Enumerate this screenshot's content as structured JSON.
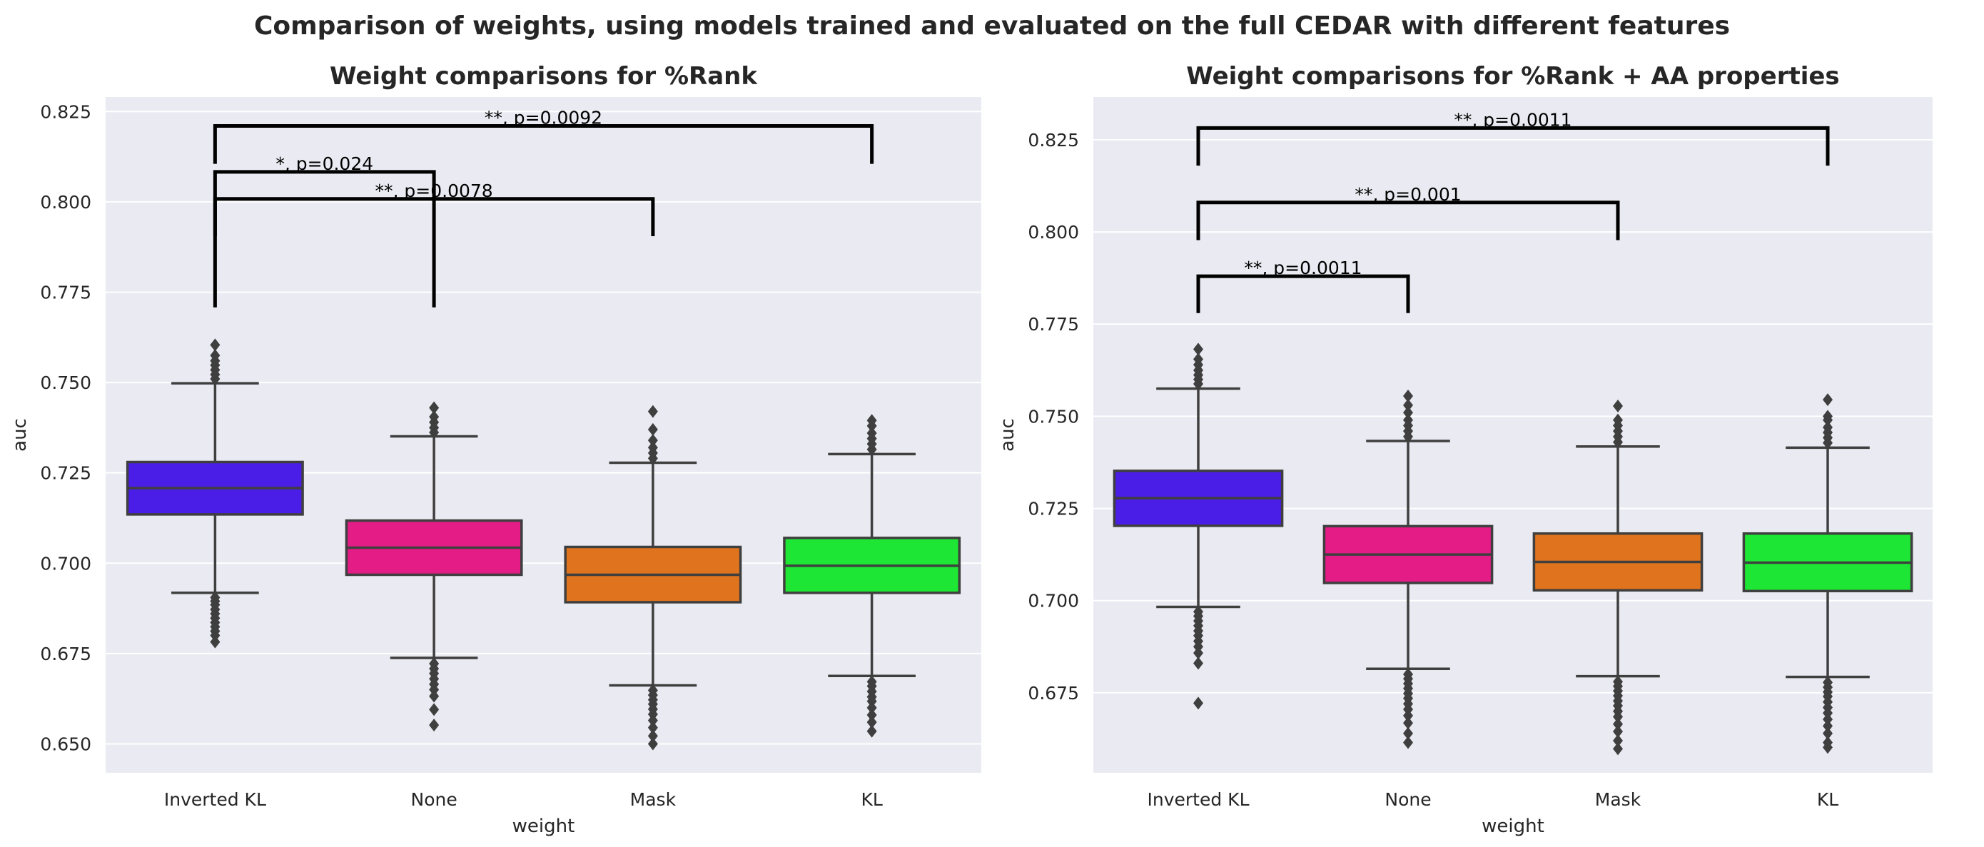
{
  "figure": {
    "title": "Comparison of weights, using models trained and evaluated on the full CEDAR with different features"
  },
  "chart_data": [
    {
      "type": "box",
      "title": "Weight comparisons for %Rank",
      "xlabel": "weight",
      "ylabel": "auc",
      "categories": [
        "Inverted KL",
        "None",
        "Mask",
        "KL"
      ],
      "colors": [
        "#4a1ee6",
        "#e31c86",
        "#e0731d",
        "#1ee634"
      ],
      "ylim": [
        0.642,
        0.829
      ],
      "yticks": [
        {
          "value": 0.65,
          "label": "0.650"
        },
        {
          "value": 0.675,
          "label": "0.675"
        },
        {
          "value": 0.7,
          "label": "0.700"
        },
        {
          "value": 0.725,
          "label": "0.725"
        },
        {
          "value": 0.75,
          "label": "0.750"
        },
        {
          "value": 0.775,
          "label": "0.775"
        },
        {
          "value": 0.8,
          "label": "0.800"
        },
        {
          "value": 0.825,
          "label": "0.825"
        }
      ],
      "boxes": [
        {
          "category": "Inverted KL",
          "q1": 0.7135,
          "median": 0.7208,
          "q3": 0.728,
          "whisker_low": 0.6918,
          "whisker_high": 0.7498,
          "fliers_low": [
            0.6905,
            0.6895,
            0.6885,
            0.6872,
            0.686,
            0.6848,
            0.6836,
            0.6824,
            0.6812,
            0.68,
            0.6782
          ],
          "fliers_high": [
            0.751,
            0.7522,
            0.7535,
            0.7548,
            0.756,
            0.7575,
            0.7604
          ]
        },
        {
          "category": "None",
          "q1": 0.6968,
          "median": 0.7043,
          "q3": 0.7118,
          "whisker_low": 0.6738,
          "whisker_high": 0.7351,
          "fliers_low": [
            0.6722,
            0.6708,
            0.6695,
            0.668,
            0.6665,
            0.665,
            0.6632,
            0.6595,
            0.6552
          ],
          "fliers_high": [
            0.7362,
            0.7375,
            0.739,
            0.7405,
            0.743
          ]
        },
        {
          "category": "Mask",
          "q1": 0.6892,
          "median": 0.6968,
          "q3": 0.7045,
          "whisker_low": 0.6662,
          "whisker_high": 0.7278,
          "fliers_low": [
            0.6648,
            0.6635,
            0.6622,
            0.661,
            0.6596,
            0.6582,
            0.6565,
            0.6545,
            0.6522,
            0.65
          ],
          "fliers_high": [
            0.729,
            0.7305,
            0.732,
            0.734,
            0.737,
            0.742
          ]
        },
        {
          "category": "KL",
          "q1": 0.6918,
          "median": 0.6993,
          "q3": 0.707,
          "whisker_low": 0.6688,
          "whisker_high": 0.7302,
          "fliers_low": [
            0.6672,
            0.666,
            0.6645,
            0.663,
            0.6618,
            0.66,
            0.658,
            0.656,
            0.6535
          ],
          "fliers_high": [
            0.7315,
            0.733,
            0.7345,
            0.736,
            0.738,
            0.7395
          ]
        }
      ],
      "annotations": [
        {
          "from": "Inverted KL",
          "to": "None",
          "y": 0.8083,
          "bottom_left": 0.7708,
          "bottom_right": 0.7708,
          "text": "*, p=0.024"
        },
        {
          "from": "Inverted KL",
          "to": "Mask",
          "y": 0.8008,
          "bottom_left": 0.7905,
          "bottom_right": 0.7905,
          "text": "**, p=0.0078"
        },
        {
          "from": "Inverted KL",
          "to": "KL",
          "y": 0.821,
          "bottom_left": 0.8105,
          "bottom_right": 0.8105,
          "text": "**, p=0.0092"
        }
      ]
    },
    {
      "type": "box",
      "title": "Weight comparisons for %Rank + AA properties",
      "xlabel": "weight",
      "ylabel": "auc",
      "categories": [
        "Inverted KL",
        "None",
        "Mask",
        "KL"
      ],
      "colors": [
        "#4a1ee6",
        "#e31c86",
        "#e0731d",
        "#1ee634"
      ],
      "ylim": [
        0.6533,
        0.8366
      ],
      "yticks": [
        {
          "value": 0.675,
          "label": "0.675"
        },
        {
          "value": 0.7,
          "label": "0.700"
        },
        {
          "value": 0.725,
          "label": "0.725"
        },
        {
          "value": 0.75,
          "label": "0.750"
        },
        {
          "value": 0.775,
          "label": "0.775"
        },
        {
          "value": 0.8,
          "label": "0.800"
        },
        {
          "value": 0.825,
          "label": "0.825"
        }
      ],
      "boxes": [
        {
          "category": "Inverted KL",
          "q1": 0.7203,
          "median": 0.7278,
          "q3": 0.7352,
          "whisker_low": 0.6983,
          "whisker_high": 0.7575,
          "fliers_low": [
            0.697,
            0.6958,
            0.6945,
            0.6932,
            0.6918,
            0.6905,
            0.689,
            0.6875,
            0.6858,
            0.683,
            0.6722
          ],
          "fliers_high": [
            0.7588,
            0.76,
            0.7612,
            0.7625,
            0.764,
            0.7655,
            0.7682
          ]
        },
        {
          "category": "None",
          "q1": 0.7048,
          "median": 0.7125,
          "q3": 0.7202,
          "whisker_low": 0.6815,
          "whisker_high": 0.7433,
          "fliers_low": [
            0.68,
            0.6788,
            0.6775,
            0.6762,
            0.6748,
            0.6735,
            0.672,
            0.6705,
            0.6688,
            0.6668,
            0.664,
            0.6615
          ],
          "fliers_high": [
            0.7445,
            0.746,
            0.7475,
            0.749,
            0.751,
            0.753,
            0.7555
          ]
        },
        {
          "category": "Mask",
          "q1": 0.7028,
          "median": 0.7105,
          "q3": 0.7182,
          "whisker_low": 0.6795,
          "whisker_high": 0.7418,
          "fliers_low": [
            0.678,
            0.6768,
            0.6755,
            0.6742,
            0.6728,
            0.6715,
            0.67,
            0.6685,
            0.6665,
            0.6645,
            0.662,
            0.6598
          ],
          "fliers_high": [
            0.743,
            0.7445,
            0.746,
            0.7475,
            0.749,
            0.7528
          ]
        },
        {
          "category": "KL",
          "q1": 0.7026,
          "median": 0.7103,
          "q3": 0.7182,
          "whisker_low": 0.6793,
          "whisker_high": 0.7415,
          "fliers_low": [
            0.6778,
            0.6765,
            0.6752,
            0.674,
            0.6725,
            0.671,
            0.6695,
            0.6678,
            0.666,
            0.664,
            0.6615,
            0.6602
          ],
          "fliers_high": [
            0.7428,
            0.7442,
            0.7456,
            0.747,
            0.749,
            0.75,
            0.7545
          ]
        }
      ],
      "annotations": [
        {
          "from": "Inverted KL",
          "to": "None",
          "y": 0.788,
          "bottom_left": 0.778,
          "bottom_right": 0.778,
          "text": "**, p=0.0011"
        },
        {
          "from": "Inverted KL",
          "to": "Mask",
          "y": 0.808,
          "bottom_left": 0.7978,
          "bottom_right": 0.7978,
          "text": "**, p=0.001"
        },
        {
          "from": "Inverted KL",
          "to": "KL",
          "y": 0.8282,
          "bottom_left": 0.818,
          "bottom_right": 0.818,
          "text": "**, p=0.0011"
        }
      ]
    }
  ]
}
